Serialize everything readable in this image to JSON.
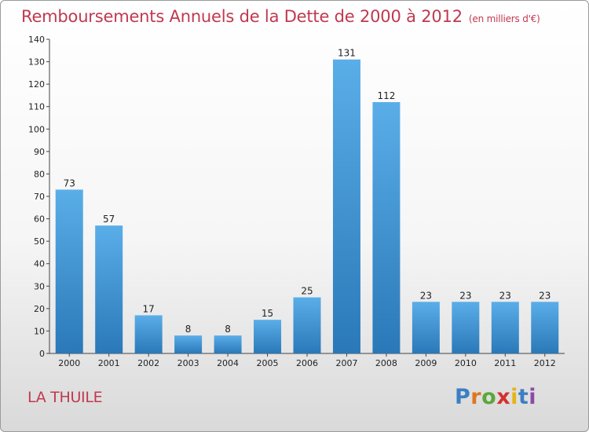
{
  "header": {
    "title": "Remboursements Annuels de la Dette de 2000 à 2012",
    "unit": "(en milliers d'€)"
  },
  "footer": {
    "place": "LA THUILE",
    "logo_letters": [
      {
        "ch": "P",
        "color": "#3b7fc4"
      },
      {
        "ch": "r",
        "color": "#e0761e"
      },
      {
        "ch": "o",
        "color": "#5aa83a"
      },
      {
        "ch": "x",
        "color": "#d4302f"
      },
      {
        "ch": "i",
        "color": "#e5b418"
      },
      {
        "ch": "t",
        "color": "#3b7fc4"
      },
      {
        "ch": "i",
        "color": "#8c4aa8"
      }
    ]
  },
  "chart_data": {
    "type": "bar",
    "title": "Remboursements Annuels de la Dette de 2000 à 2012",
    "categories": [
      "2000",
      "2001",
      "2002",
      "2003",
      "2004",
      "2005",
      "2006",
      "2007",
      "2008",
      "2009",
      "2010",
      "2011",
      "2012"
    ],
    "values": [
      73,
      57,
      17,
      8,
      8,
      15,
      25,
      131,
      112,
      23,
      23,
      23,
      23
    ],
    "ylim": [
      0,
      140
    ],
    "yticks": [
      0,
      10,
      20,
      30,
      40,
      50,
      60,
      70,
      80,
      90,
      100,
      110,
      120,
      130,
      140
    ],
    "grid": false,
    "bar_color_top": "#5aaee8",
    "bar_color_bottom": "#2a78b8"
  }
}
